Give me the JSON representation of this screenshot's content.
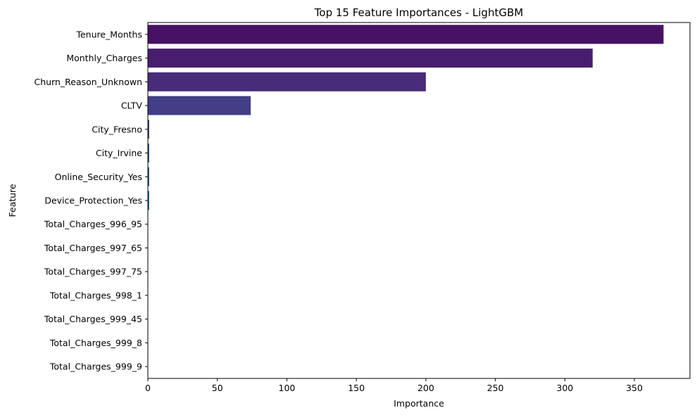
{
  "chart_data": {
    "type": "bar",
    "orientation": "horizontal",
    "title": "Top 15 Feature Importances - LightGBM",
    "xlabel": "Importance",
    "ylabel": "Feature",
    "categories": [
      "Tenure_Months",
      "Monthly_Charges",
      "Churn_Reason_Unknown",
      "CLTV",
      "City_Fresno",
      "City_Irvine",
      "Online_Security_Yes",
      "Device_Protection_Yes",
      "Total_Charges_996_95",
      "Total_Charges_997_65",
      "Total_Charges_997_75",
      "Total_Charges_998_1",
      "Total_Charges_999_45",
      "Total_Charges_999_8",
      "Total_Charges_999_9"
    ],
    "values": [
      371,
      320,
      200,
      74,
      1,
      1,
      1,
      1,
      0,
      0,
      0,
      0,
      0,
      0,
      0
    ],
    "xlim": [
      0,
      390
    ],
    "xticks": [
      0,
      50,
      100,
      150,
      200,
      250,
      300,
      350
    ],
    "grid": false,
    "legend": "none",
    "colors": [
      "#471164",
      "#481d6f",
      "#472c7a",
      "#433e85",
      "#3e4a89",
      "#38588c",
      "#32648e",
      "#2d708e",
      "#287c8e",
      "#24878e",
      "#1f948c",
      "#20a086",
      "#2cb17e",
      "#3dbc74",
      "#54c568"
    ]
  }
}
